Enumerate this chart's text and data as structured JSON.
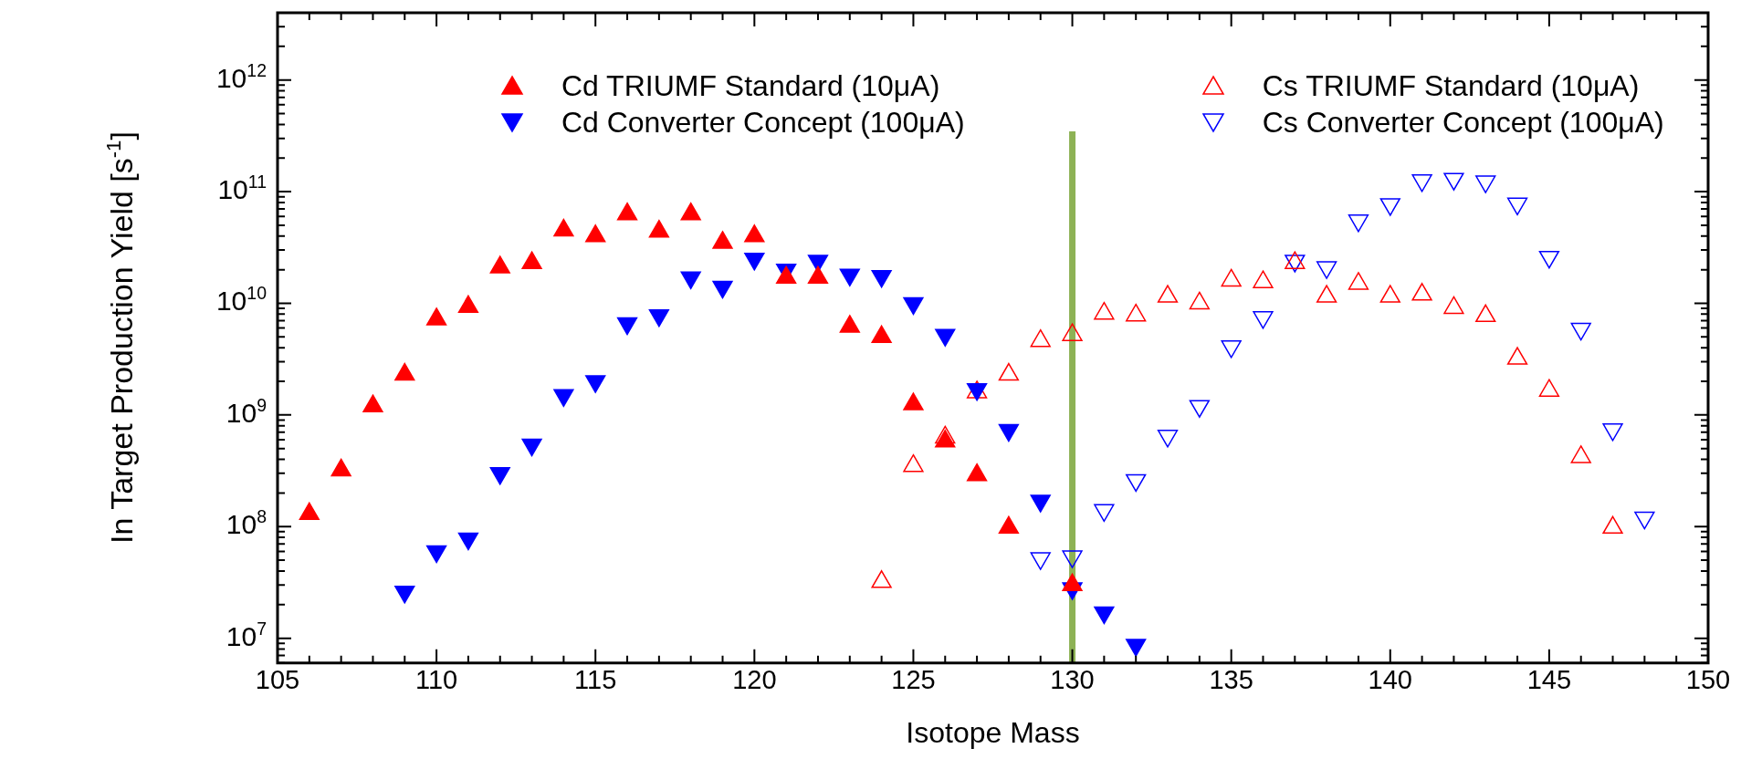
{
  "chart_data": {
    "type": "scatter",
    "xlabel": "Isotope Mass",
    "ylabel": "In Target Production Yield [s$^{-1}$]",
    "xlim": [
      105,
      150
    ],
    "xticks": [
      105,
      110,
      115,
      120,
      125,
      130,
      135,
      140,
      145,
      150
    ],
    "ylim": [
      6000000,
      4000000000000
    ],
    "log": "y",
    "yticks": [
      {
        "value": 10000000,
        "label": "10$^{7}$"
      },
      {
        "value": 100000000,
        "label": "10$^{8}$"
      },
      {
        "value": 1000000000,
        "label": "10$^{9}$"
      },
      {
        "value": 10000000000,
        "label": "10$^{10}$"
      },
      {
        "value": 100000000000,
        "label": "10$^{11}$"
      },
      {
        "value": 1000000000000,
        "label": "10$^{12}$"
      }
    ],
    "legend": "top",
    "grid": false,
    "ref_lines": [
      {
        "axis": "x",
        "value": 130,
        "color": "#8db255"
      }
    ],
    "series": [
      {
        "name": "Cd TRIUMF Standard (10μA)",
        "color": "#ff0000",
        "marker": "triangle",
        "x": [
          106,
          107,
          108,
          109,
          110,
          111,
          112,
          113,
          114,
          115,
          116,
          117,
          118,
          119,
          120,
          121,
          122,
          123,
          124,
          125,
          126,
          127,
          128,
          130
        ],
        "values": [
          130000000.0,
          320000000.0,
          1200000000.0,
          2300000000.0,
          7200000000.0,
          9300000000.0,
          21000000000.0,
          23000000000.0,
          45000000000.0,
          40000000000.0,
          63000000000.0,
          44000000000.0,
          63000000000.0,
          35000000000.0,
          40000000000.0,
          17000000000.0,
          17000000000.0,
          6200000000.0,
          5000000000.0,
          1250000000.0,
          580000000.0,
          290000000.0,
          98000000.0,
          30000000.0
        ]
      },
      {
        "name": "Cd Converter Concept (100μA)",
        "color": "#0000ff",
        "marker": "triangle-down",
        "x": [
          109,
          110,
          111,
          112,
          113,
          114,
          115,
          116,
          117,
          118,
          119,
          120,
          121,
          122,
          123,
          124,
          125,
          126,
          127,
          128,
          129,
          130,
          131,
          132
        ],
        "values": [
          26000000.0,
          60000000.0,
          78000000.0,
          300000000.0,
          540000000.0,
          1500000000.0,
          2000000000.0,
          6600000000.0,
          7800000000.0,
          17000000000.0,
          14000000000.0,
          25000000000.0,
          20000000000.0,
          24000000000.0,
          18000000000.0,
          17500000000.0,
          10000000000.0,
          5200000000.0,
          1700000000.0,
          730000000.0,
          170000000.0,
          28000000.0,
          17000000.0,
          8700000.0
        ]
      },
      {
        "name": "Cs TRIUMF Standard (10μA)",
        "color": "#ff0000",
        "marker": "triangle-open",
        "x": [
          124,
          125,
          126,
          127,
          128,
          129,
          130,
          131,
          132,
          133,
          134,
          135,
          136,
          137,
          138,
          139,
          140,
          141,
          142,
          143,
          144,
          145,
          146,
          147
        ],
        "values": [
          32000000.0,
          350000000.0,
          630000000.0,
          1600000000.0,
          2300000000.0,
          4600000000.0,
          5200000000.0,
          8100000000.0,
          7800000000.0,
          11500000000.0,
          10000000000.0,
          16000000000.0,
          15500000000.0,
          23000000000.0,
          11500000000.0,
          15000000000.0,
          11500000000.0,
          12000000000.0,
          9100000000.0,
          7700000000.0,
          3200000000.0,
          1650000000.0,
          420000000.0,
          98000000.0
        ]
      },
      {
        "name": "Cs Converter Concept (100μA)",
        "color": "#0000ff",
        "marker": "triangle-down-open",
        "x": [
          129,
          130,
          131,
          132,
          133,
          134,
          135,
          136,
          137,
          138,
          139,
          140,
          141,
          142,
          143,
          144,
          145,
          146,
          147,
          148
        ],
        "values": [
          52000000.0,
          54000000.0,
          140000000.0,
          260000000.0,
          650000000.0,
          1200000000.0,
          4100000000.0,
          7500000000.0,
          24000000000.0,
          21000000000.0,
          55000000000.0,
          77000000000.0,
          126000000000.0,
          130000000000.0,
          123000000000.0,
          78000000000.0,
          26000000000.0,
          5900000000.0,
          740000000.0,
          120000000.0
        ]
      }
    ]
  }
}
